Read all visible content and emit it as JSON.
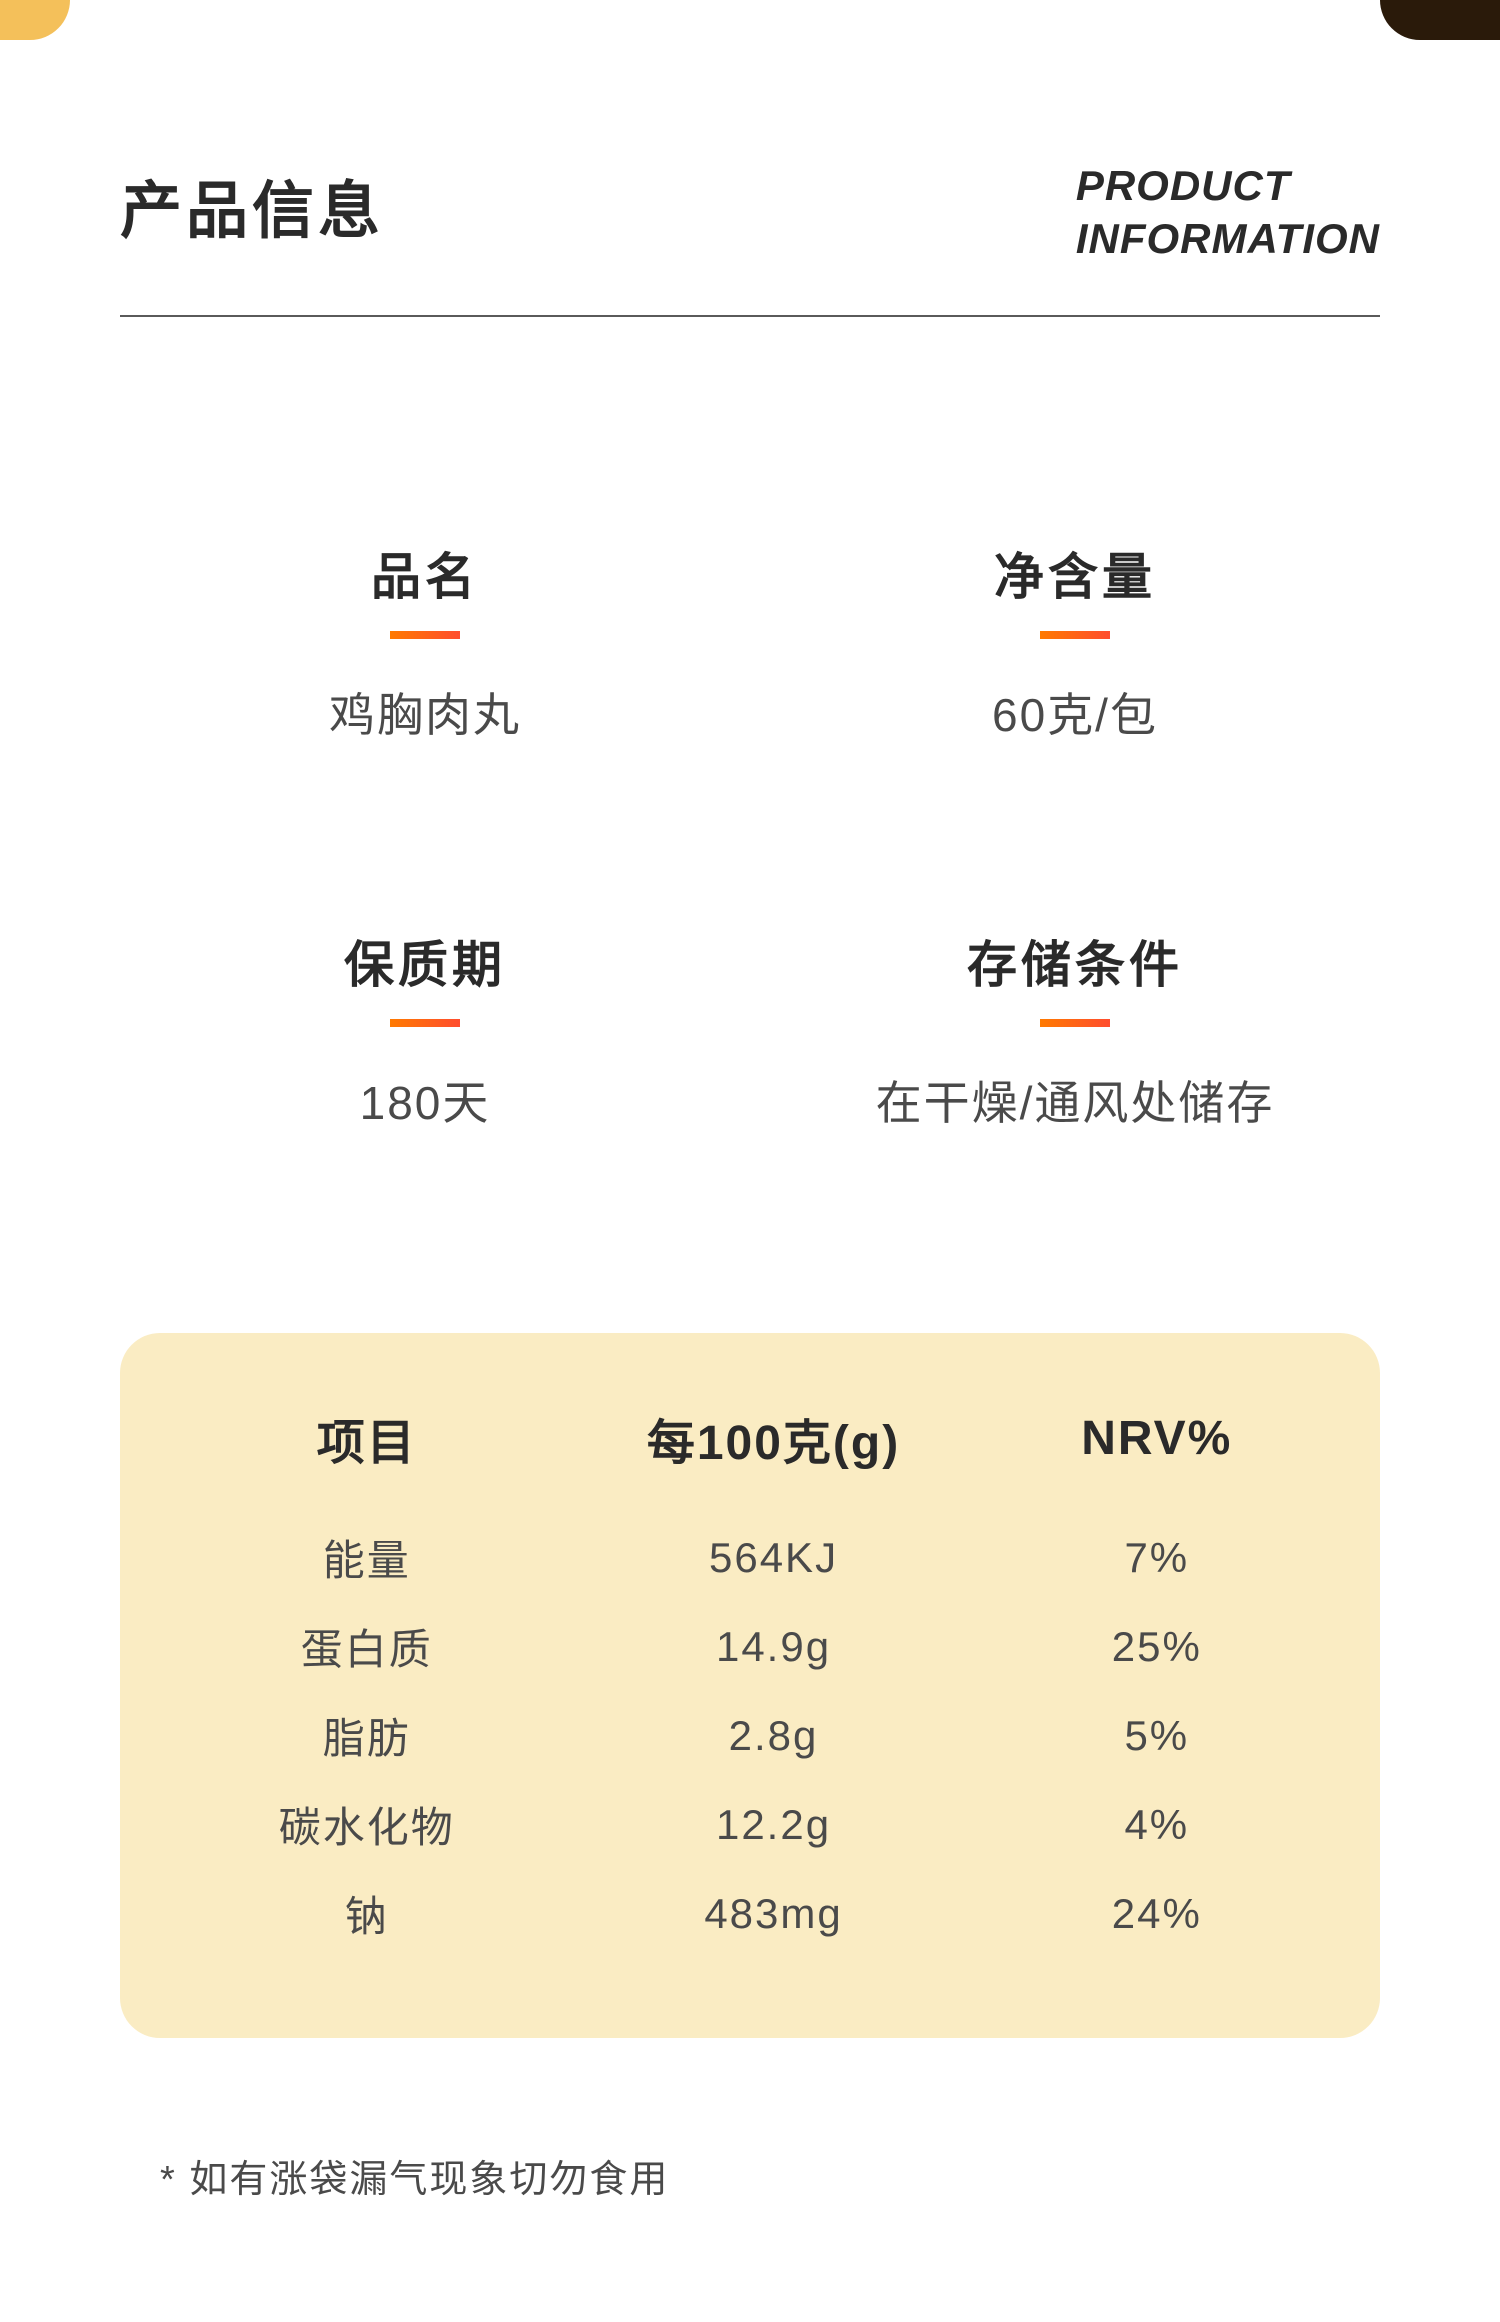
{
  "corner_colors": {
    "left": "#f4c05a",
    "right": "#2a1a0a"
  },
  "header": {
    "title_cn": "产品信息",
    "title_en_line1": "PRODUCT",
    "title_en_line2": "INFORMATION"
  },
  "info": [
    {
      "label": "品名",
      "value": "鸡胸肉丸"
    },
    {
      "label": "净含量",
      "value": "60克/包"
    },
    {
      "label": "保质期",
      "value": "180天"
    },
    {
      "label": "存储条件",
      "value": "在干燥/通风处储存"
    }
  ],
  "accent_gradient": {
    "from": "#ff7a00",
    "to": "#ff4d2e"
  },
  "nutrition": {
    "card_bg": "#faecc3",
    "card_radius": 40,
    "columns": [
      "项目",
      "每100克(g)",
      "NRV%"
    ],
    "rows": [
      [
        "能量",
        "564KJ",
        "7%"
      ],
      [
        "蛋白质",
        "14.9g",
        "25%"
      ],
      [
        "脂肪",
        "2.8g",
        "5%"
      ],
      [
        "碳水化物",
        "12.2g",
        "4%"
      ],
      [
        "钠",
        "483mg",
        "24%"
      ]
    ]
  },
  "footnote": "* 如有涨袋漏气现象切勿食用",
  "typography": {
    "title_cn_fontsize": 62,
    "title_en_fontsize": 42,
    "info_label_fontsize": 50,
    "info_value_fontsize": 46,
    "table_header_fontsize": 48,
    "table_cell_fontsize": 42,
    "footnote_fontsize": 38,
    "text_color": "#2a2a2a",
    "sub_text_color": "#4a4a4a",
    "background": "#ffffff"
  }
}
